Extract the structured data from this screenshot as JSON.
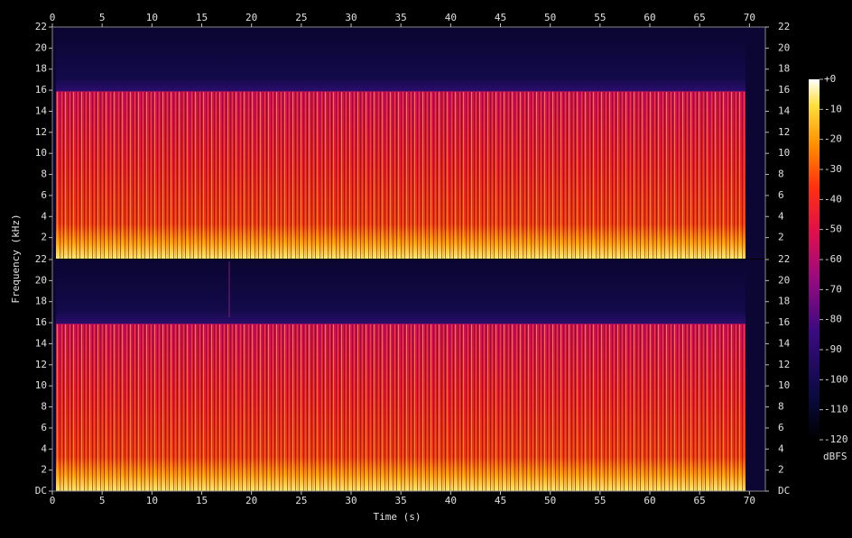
{
  "chart_data": {
    "type": "spectrogram",
    "x_label": "Time (s)",
    "y_label": "Frequency (kHz)",
    "xlim": [
      0,
      71.6
    ],
    "xticks": [
      0,
      5,
      10,
      15,
      20,
      25,
      30,
      35,
      40,
      45,
      50,
      55,
      60,
      65,
      70
    ],
    "channels": [
      {
        "ylim": [
          0,
          22
        ],
        "yticks": [
          2,
          4,
          6,
          8,
          10,
          12,
          14,
          16,
          18,
          20,
          22
        ]
      },
      {
        "ylim": [
          0,
          22
        ],
        "yticks": [
          {
            "value": 0,
            "label": "DC"
          },
          2,
          4,
          6,
          8,
          10,
          12,
          14,
          16,
          18,
          20,
          22
        ]
      }
    ],
    "colorbar": {
      "label": "dBFS",
      "lim": [
        -120,
        0
      ],
      "ticks": [
        {
          "value": 0,
          "label": "+0"
        },
        -10,
        -20,
        -30,
        -40,
        -50,
        -60,
        -70,
        -80,
        -90,
        -100,
        -110,
        -120
      ]
    }
  }
}
